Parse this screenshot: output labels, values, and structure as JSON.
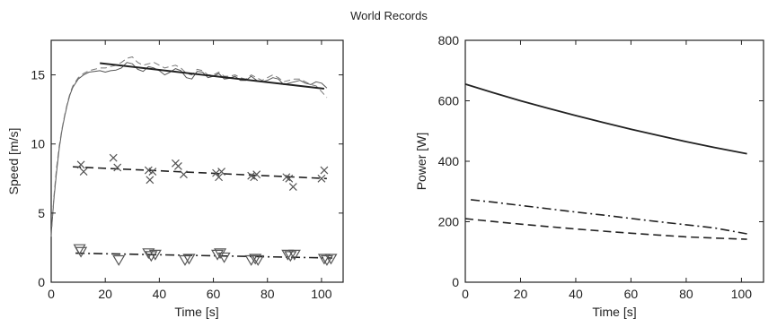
{
  "figure_title": "World Records",
  "chart_data": [
    {
      "type": "line",
      "xlabel": "Time [s]",
      "ylabel": "Speed [m/s]",
      "xlim": [
        0,
        108
      ],
      "ylim": [
        0,
        17.5
      ],
      "xticks": [
        0,
        20,
        40,
        60,
        80,
        100
      ],
      "yticks": [
        0,
        5,
        10,
        15
      ],
      "grid": false,
      "series": [
        {
          "style": "solid-thin",
          "color": "#555555",
          "x": [
            0,
            1,
            2,
            3,
            4,
            5,
            6,
            7,
            8,
            10,
            12,
            14,
            16,
            18,
            20,
            22,
            24,
            26,
            28,
            30,
            32,
            34,
            36,
            38,
            40,
            42,
            44,
            46,
            48,
            50,
            52,
            54,
            56,
            58,
            60,
            62,
            64,
            66,
            68,
            70,
            72,
            74,
            76,
            78,
            80,
            82,
            84,
            86,
            88,
            90,
            92,
            94,
            96,
            98,
            100,
            102
          ],
          "y": [
            3.5,
            6.0,
            8.0,
            9.7,
            11.0,
            12.0,
            12.9,
            13.6,
            14.1,
            14.7,
            15.0,
            15.2,
            15.25,
            15.3,
            15.2,
            15.3,
            15.35,
            15.5,
            15.9,
            15.8,
            15.4,
            15.25,
            15.6,
            15.5,
            15.3,
            15.0,
            15.2,
            15.45,
            15.3,
            14.8,
            14.7,
            15.25,
            15.2,
            14.8,
            14.9,
            15.1,
            14.7,
            14.75,
            14.9,
            14.6,
            14.6,
            14.9,
            14.6,
            14.5,
            14.6,
            14.8,
            14.7,
            14.3,
            14.4,
            14.5,
            14.6,
            14.4,
            14.3,
            14.5,
            14.4,
            14.05
          ]
        },
        {
          "style": "dashed-thin",
          "color": "#777777",
          "x": [
            0,
            1,
            2,
            3,
            4,
            5,
            6,
            7,
            8,
            10,
            12,
            14,
            16,
            18,
            20,
            22,
            24,
            26,
            28,
            30,
            32,
            34,
            36,
            38,
            40,
            42,
            44,
            46,
            48,
            50,
            52,
            54,
            56,
            58,
            60,
            62,
            64,
            66,
            68,
            70,
            72,
            74,
            76,
            78,
            80,
            82,
            84,
            86,
            88,
            90,
            92,
            94,
            96,
            98,
            100,
            102
          ],
          "y": [
            3.3,
            6.2,
            8.3,
            9.9,
            11.1,
            12.1,
            13.0,
            13.7,
            14.2,
            14.8,
            15.1,
            15.3,
            15.4,
            15.5,
            15.5,
            15.6,
            15.7,
            15.9,
            16.2,
            16.3,
            15.9,
            15.7,
            15.8,
            15.9,
            15.7,
            15.5,
            15.6,
            15.7,
            15.5,
            15.1,
            15.0,
            15.4,
            15.3,
            15.0,
            15.0,
            15.2,
            14.9,
            14.9,
            15.0,
            14.8,
            14.7,
            15.0,
            14.8,
            14.6,
            14.8,
            15.0,
            14.8,
            14.5,
            14.6,
            14.7,
            14.7,
            14.5,
            14.3,
            14.2,
            13.8,
            13.35
          ]
        },
        {
          "style": "solid-thick",
          "color": "#222222",
          "x": [
            18,
            101
          ],
          "y": [
            15.85,
            14.0
          ]
        },
        {
          "style": "dashed",
          "color": "#222222",
          "x": [
            8,
            102
          ],
          "y": [
            8.35,
            7.5
          ]
        },
        {
          "style": "markers-x",
          "color": "#555555",
          "x": [
            11,
            12,
            23,
            24.5,
            36,
            36.5,
            37.5,
            46,
            47,
            49,
            61,
            62,
            63,
            74,
            75,
            76,
            87,
            88,
            89.5,
            100,
            101
          ],
          "y": [
            8.5,
            8.0,
            9.0,
            8.3,
            8.1,
            7.4,
            8.0,
            8.6,
            8.4,
            7.8,
            7.9,
            7.6,
            8.0,
            7.7,
            7.6,
            7.8,
            7.6,
            7.5,
            6.9,
            7.5,
            8.1
          ]
        },
        {
          "style": "dashdot",
          "color": "#222222",
          "x": [
            9,
            104
          ],
          "y": [
            2.1,
            1.75
          ]
        },
        {
          "style": "markers-triangle",
          "color": "#555555",
          "x": [
            10.5,
            11,
            25,
            36,
            37,
            38.5,
            49.5,
            51,
            61.5,
            62.5,
            64,
            74,
            75.5,
            76.5,
            87.5,
            88.5,
            90,
            101,
            102,
            103.5
          ],
          "y": [
            2.4,
            2.2,
            1.6,
            2.1,
            1.9,
            2.0,
            1.6,
            1.7,
            2.0,
            2.1,
            1.8,
            1.6,
            1.7,
            1.6,
            2.0,
            1.9,
            2.0,
            1.7,
            1.6,
            1.7
          ]
        }
      ]
    },
    {
      "type": "line",
      "xlabel": "Time [s]",
      "ylabel": "Power [W]",
      "xlim": [
        0,
        108
      ],
      "ylim": [
        0,
        800
      ],
      "xticks": [
        0,
        20,
        40,
        60,
        80,
        100
      ],
      "yticks": [
        0,
        200,
        400,
        600,
        800
      ],
      "grid": false,
      "series": [
        {
          "style": "solid",
          "color": "#222222",
          "x": [
            0,
            10,
            20,
            30,
            40,
            50,
            60,
            70,
            80,
            90,
            102
          ],
          "y": [
            655,
            627,
            600,
            575,
            551,
            528,
            506,
            485,
            465,
            446,
            425
          ]
        },
        {
          "style": "dashdot",
          "color": "#222222",
          "x": [
            2,
            10,
            20,
            30,
            40,
            50,
            60,
            70,
            80,
            90,
            102
          ],
          "y": [
            273,
            265,
            254,
            243,
            232,
            222,
            211,
            200,
            190,
            180,
            160
          ]
        },
        {
          "style": "dashed",
          "color": "#222222",
          "x": [
            0,
            10,
            20,
            30,
            40,
            50,
            60,
            70,
            80,
            90,
            102
          ],
          "y": [
            210,
            201,
            192,
            184,
            176,
            169,
            162,
            156,
            150,
            146,
            142
          ]
        }
      ]
    }
  ]
}
